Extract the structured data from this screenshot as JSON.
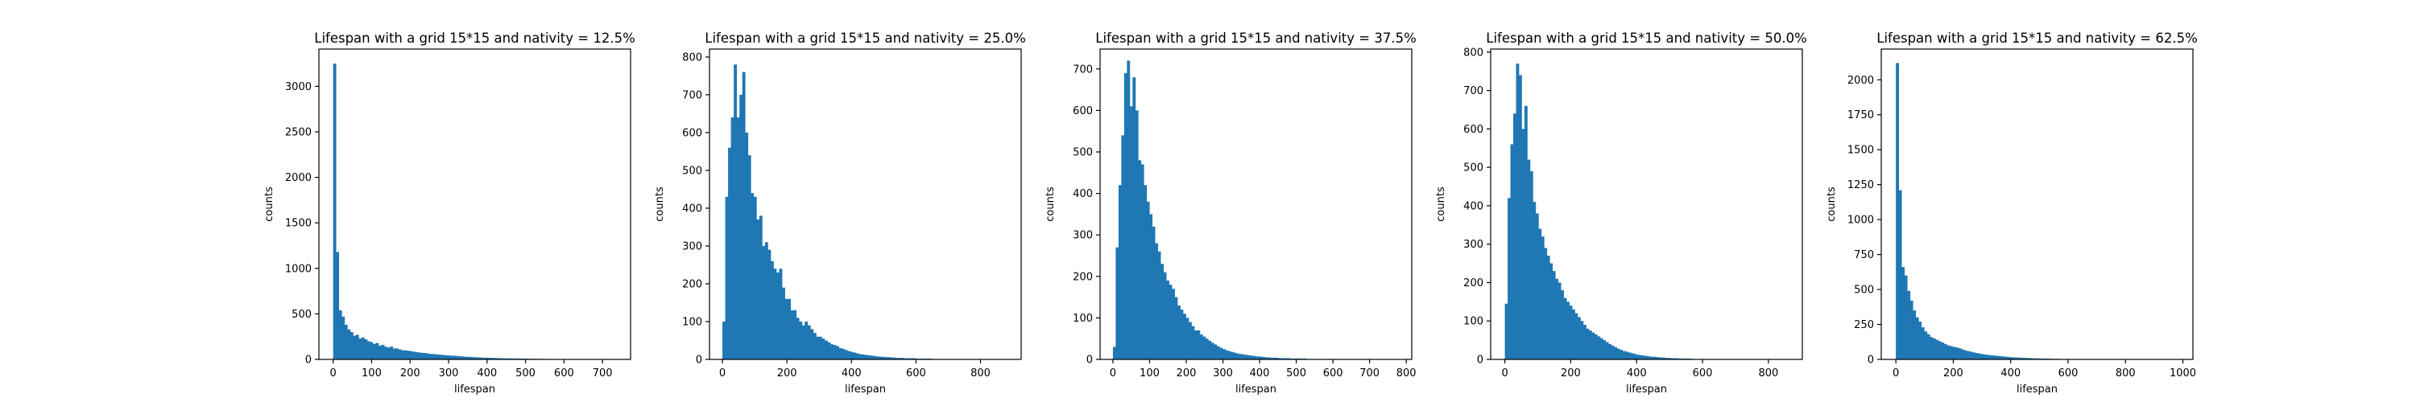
{
  "colors": {
    "bar": "#1f77b4",
    "axis": "#000000",
    "background": "#ffffff"
  },
  "chart_data": [
    {
      "type": "bar",
      "title": "Lifespan with a grid 15*15 and nativity = 12.5%",
      "xlabel": "lifespan",
      "ylabel": "counts",
      "xlim": [
        -37,
        773
      ],
      "ylim": [
        0,
        3410
      ],
      "xticks": [
        0,
        100,
        200,
        300,
        400,
        500,
        600,
        700
      ],
      "yticks": [
        0,
        500,
        1000,
        1500,
        2000,
        2500,
        3000
      ],
      "bin_width": 7.37,
      "bin_start": 0,
      "values": [
        3250,
        1180,
        540,
        470,
        380,
        330,
        300,
        260,
        270,
        230,
        240,
        220,
        200,
        190,
        170,
        180,
        150,
        160,
        140,
        130,
        140,
        120,
        120,
        110,
        100,
        100,
        95,
        90,
        85,
        80,
        75,
        72,
        70,
        65,
        60,
        58,
        55,
        52,
        50,
        46,
        44,
        42,
        40,
        38,
        35,
        33,
        30,
        28,
        27,
        25,
        23,
        22,
        20,
        19,
        18,
        17,
        16,
        15,
        14,
        13,
        12,
        11,
        11,
        10,
        10,
        9,
        9,
        8,
        8,
        7,
        7,
        6,
        6,
        6,
        5,
        5,
        5,
        4,
        4,
        4,
        4,
        3,
        3,
        3,
        3,
        3,
        2,
        2,
        2,
        2,
        2,
        2,
        2,
        1,
        1,
        1,
        1,
        1,
        1,
        1
      ]
    },
    {
      "type": "bar",
      "title": "Lifespan with a grid 15*15 and nativity = 25.0%",
      "xlabel": "lifespan",
      "ylabel": "counts",
      "xlim": [
        -40,
        926
      ],
      "ylim": [
        0,
        821
      ],
      "xticks": [
        0,
        200,
        400,
        600,
        800
      ],
      "yticks": [
        0,
        100,
        200,
        300,
        400,
        500,
        600,
        700,
        800
      ],
      "bin_width": 8.8,
      "bin_start": 0,
      "values": [
        100,
        430,
        560,
        640,
        780,
        640,
        700,
        760,
        600,
        540,
        440,
        430,
        370,
        380,
        300,
        310,
        290,
        260,
        240,
        230,
        240,
        190,
        160,
        160,
        130,
        130,
        110,
        100,
        90,
        100,
        90,
        80,
        70,
        60,
        60,
        55,
        50,
        45,
        40,
        38,
        35,
        30,
        28,
        25,
        22,
        20,
        18,
        16,
        14,
        13,
        12,
        11,
        10,
        9,
        8,
        7,
        7,
        6,
        6,
        5,
        5,
        4,
        4,
        4,
        3,
        3,
        3,
        3,
        2,
        2,
        2,
        2,
        2,
        2,
        1,
        1,
        1,
        1,
        1,
        1,
        1,
        1,
        1,
        1,
        1,
        0,
        0,
        0,
        0,
        0,
        0,
        0,
        0,
        0,
        0,
        0,
        0,
        0,
        0,
        0
      ]
    },
    {
      "type": "bar",
      "title": "Lifespan with a grid 15*15 and nativity = 37.5%",
      "xlabel": "lifespan",
      "ylabel": "counts",
      "xlim": [
        -35,
        815
      ],
      "ylim": [
        0,
        748
      ],
      "xticks": [
        0,
        100,
        200,
        300,
        400,
        500,
        600,
        700,
        800
      ],
      "yticks": [
        0,
        100,
        200,
        300,
        400,
        500,
        600,
        700
      ],
      "bin_width": 7.65,
      "bin_start": 0,
      "values": [
        30,
        270,
        420,
        540,
        690,
        720,
        610,
        680,
        600,
        480,
        470,
        420,
        380,
        350,
        320,
        280,
        260,
        230,
        210,
        190,
        180,
        170,
        150,
        130,
        120,
        110,
        100,
        90,
        80,
        70,
        70,
        60,
        55,
        50,
        45,
        40,
        36,
        32,
        28,
        25,
        22,
        20,
        18,
        16,
        14,
        13,
        12,
        11,
        10,
        9,
        8,
        7,
        7,
        6,
        5,
        5,
        4,
        4,
        4,
        3,
        3,
        3,
        3,
        2,
        2,
        2,
        2,
        2,
        2,
        1,
        1,
        1,
        1,
        1,
        1,
        1,
        1,
        1,
        1,
        0,
        0,
        1,
        0,
        0,
        0,
        0,
        0,
        0,
        0,
        0,
        0,
        0,
        0,
        0,
        0,
        0,
        0,
        0,
        0,
        0
      ]
    },
    {
      "type": "bar",
      "title": "Lifespan with a grid 15*15 and nativity = 50.0%",
      "xlabel": "lifespan",
      "ylabel": "counts",
      "xlim": [
        -43,
        903
      ],
      "ylim": [
        0,
        808
      ],
      "xticks": [
        0,
        200,
        400,
        600,
        800
      ],
      "yticks": [
        0,
        100,
        200,
        300,
        400,
        500,
        600,
        700,
        800
      ],
      "bin_width": 8.5,
      "bin_start": 0,
      "values": [
        145,
        420,
        560,
        640,
        770,
        740,
        600,
        660,
        520,
        490,
        410,
        380,
        340,
        320,
        290,
        270,
        250,
        230,
        210,
        200,
        180,
        160,
        150,
        140,
        130,
        120,
        110,
        100,
        90,
        80,
        75,
        70,
        65,
        60,
        55,
        50,
        45,
        40,
        36,
        32,
        28,
        25,
        22,
        20,
        18,
        16,
        14,
        12,
        11,
        10,
        9,
        8,
        7,
        7,
        6,
        5,
        5,
        4,
        4,
        3,
        3,
        3,
        2,
        2,
        2,
        2,
        2,
        1,
        1,
        1,
        1,
        1,
        1,
        1,
        1,
        1,
        1,
        0,
        0,
        0,
        0,
        0,
        0,
        0,
        0,
        0,
        0,
        0,
        0,
        0,
        0,
        0,
        0,
        0,
        0,
        0,
        0,
        0,
        0,
        0
      ]
    },
    {
      "type": "bar",
      "title": "Lifespan with a grid 15*15 and nativity = 62.5%",
      "xlabel": "lifespan",
      "ylabel": "counts",
      "xlim": [
        -51,
        1035
      ],
      "ylim": [
        0,
        2220
      ],
      "xticks": [
        0,
        200,
        400,
        600,
        800,
        1000
      ],
      "yticks": [
        0,
        250,
        500,
        750,
        1000,
        1250,
        1500,
        1750,
        2000
      ],
      "bin_width": 9.85,
      "bin_start": 0,
      "values": [
        2120,
        1210,
        660,
        600,
        490,
        420,
        350,
        300,
        270,
        230,
        200,
        180,
        160,
        150,
        140,
        130,
        120,
        110,
        100,
        95,
        90,
        85,
        80,
        72,
        65,
        60,
        55,
        50,
        46,
        42,
        38,
        35,
        32,
        30,
        28,
        26,
        24,
        22,
        20,
        18,
        16,
        15,
        14,
        13,
        12,
        11,
        10,
        9,
        8,
        8,
        7,
        6,
        6,
        5,
        5,
        4,
        4,
        4,
        3,
        3,
        3,
        3,
        2,
        2,
        2,
        2,
        2,
        2,
        1,
        1,
        1,
        1,
        1,
        1,
        1,
        1,
        1,
        1,
        1,
        0,
        0,
        0,
        0,
        0,
        0,
        0,
        0,
        0,
        0,
        0,
        0,
        0,
        0,
        0,
        0,
        0,
        0,
        0,
        0,
        0
      ]
    }
  ]
}
